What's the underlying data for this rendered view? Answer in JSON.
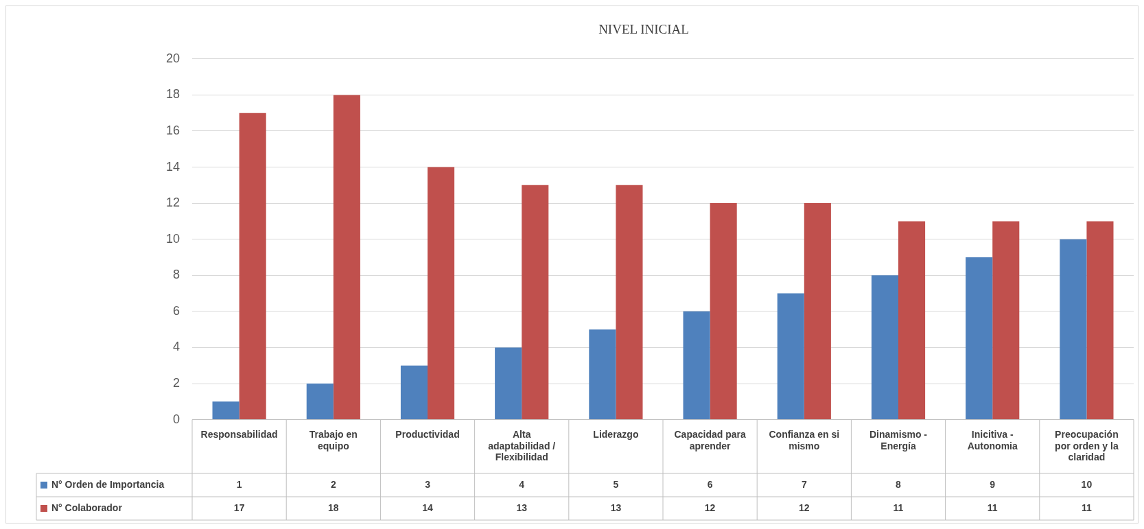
{
  "chart_data": {
    "type": "bar",
    "title": "NIVEL INICIAL",
    "categories": [
      "Responsabilidad",
      "Trabajo en equipo",
      "Productividad",
      "Alta adaptabilidad / Flexibilidad",
      "Liderazgo",
      "Capacidad para aprender",
      "Confianza en si mismo",
      "Dinamismo - Energía",
      "Inicitiva - Autonomia",
      "Preocupación por orden y la claridad"
    ],
    "series": [
      {
        "name": "N° Orden de Importancia",
        "color": "#4f81bd",
        "values": [
          1,
          2,
          3,
          4,
          5,
          6,
          7,
          8,
          9,
          10
        ]
      },
      {
        "name": "N° Colaborador",
        "color": "#c0504d",
        "values": [
          17,
          18,
          14,
          13,
          13,
          12,
          12,
          11,
          11,
          11
        ]
      }
    ],
    "ylim": [
      0,
      20
    ],
    "yticks": [
      0,
      2,
      4,
      6,
      8,
      10,
      12,
      14,
      16,
      18,
      20
    ],
    "grid": "y",
    "legend": "bottom",
    "data_labels": true
  }
}
